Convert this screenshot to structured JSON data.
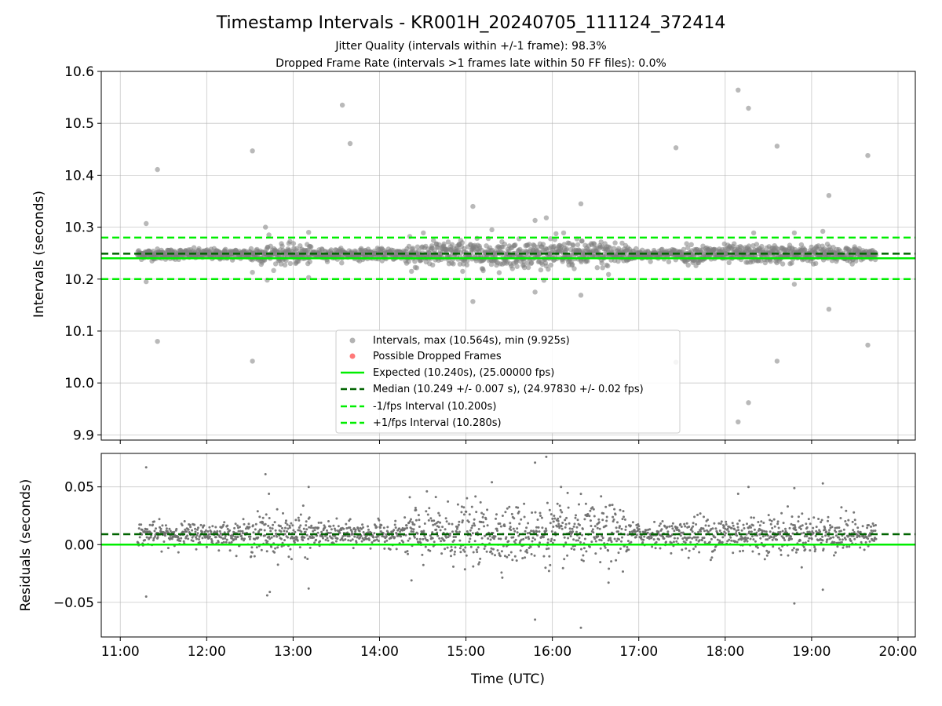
{
  "chart_data": [
    {
      "type": "scatter",
      "title": "Timestamp Intervals - KR001H_20240705_111124_372414",
      "subtitle_lines": [
        "Jitter Quality (intervals within +/-1 frame): 98.3%",
        "Dropped Frame Rate (intervals >1 frames late within 50 FF files): 0.0%"
      ],
      "xlabel": "",
      "ylabel": "Intervals (seconds)",
      "ylim": [
        9.89,
        10.6
      ],
      "y_ticks": [
        9.9,
        10.0,
        10.1,
        10.2,
        10.3,
        10.4,
        10.5,
        10.6
      ],
      "x_ticks_hours": [
        11,
        12,
        13,
        14,
        15,
        16,
        17,
        18,
        19,
        20
      ],
      "xlim_hours": [
        10.78,
        20.2
      ],
      "grid": true,
      "legend_position": "lower-center",
      "series": [
        {
          "name": "Intervals, max (10.564s), min (9.925s)",
          "color": "#808080",
          "marker": "circle",
          "band": {
            "t_start": 11.2,
            "t_end": 19.75,
            "center": 10.248
          },
          "outliers": [
            {
              "t": 11.3,
              "y": 10.307
            },
            {
              "t": 11.3,
              "y": 10.195
            },
            {
              "t": 11.43,
              "y": 10.411
            },
            {
              "t": 11.43,
              "y": 10.08
            },
            {
              "t": 12.53,
              "y": 10.447
            },
            {
              "t": 12.53,
              "y": 10.042
            },
            {
              "t": 12.53,
              "y": 10.213
            },
            {
              "t": 12.68,
              "y": 10.3
            },
            {
              "t": 12.7,
              "y": 10.198
            },
            {
              "t": 12.72,
              "y": 10.285
            },
            {
              "t": 13.03,
              "y": 10.23
            },
            {
              "t": 13.18,
              "y": 10.29
            },
            {
              "t": 13.18,
              "y": 10.203
            },
            {
              "t": 13.57,
              "y": 10.535
            },
            {
              "t": 13.66,
              "y": 10.461
            },
            {
              "t": 14.35,
              "y": 10.282
            },
            {
              "t": 14.37,
              "y": 10.215
            },
            {
              "t": 15.08,
              "y": 10.34
            },
            {
              "t": 15.08,
              "y": 10.157
            },
            {
              "t": 15.3,
              "y": 10.295
            },
            {
              "t": 15.8,
              "y": 10.313
            },
            {
              "t": 15.8,
              "y": 10.175
            },
            {
              "t": 15.93,
              "y": 10.318
            },
            {
              "t": 16.13,
              "y": 10.289
            },
            {
              "t": 16.33,
              "y": 10.345
            },
            {
              "t": 16.33,
              "y": 10.169
            },
            {
              "t": 16.65,
              "y": 10.209
            },
            {
              "t": 17.43,
              "y": 10.453
            },
            {
              "t": 17.43,
              "y": 10.04
            },
            {
              "t": 18.15,
              "y": 10.564
            },
            {
              "t": 18.15,
              "y": 9.925
            },
            {
              "t": 18.27,
              "y": 10.529
            },
            {
              "t": 18.27,
              "y": 9.962
            },
            {
              "t": 18.33,
              "y": 10.289
            },
            {
              "t": 18.6,
              "y": 10.456
            },
            {
              "t": 18.6,
              "y": 10.042
            },
            {
              "t": 18.8,
              "y": 10.289
            },
            {
              "t": 18.8,
              "y": 10.19
            },
            {
              "t": 19.13,
              "y": 10.292
            },
            {
              "t": 19.2,
              "y": 10.361
            },
            {
              "t": 19.2,
              "y": 10.142
            },
            {
              "t": 19.65,
              "y": 10.438
            },
            {
              "t": 19.65,
              "y": 10.073
            }
          ]
        },
        {
          "name": "Possible Dropped Frames",
          "color": "#ff4040",
          "marker": "circle",
          "points": []
        },
        {
          "name": "Expected (10.240s), (25.00000 fps)",
          "color": "#00ee00",
          "style": "solid",
          "y": 10.24
        },
        {
          "name": "Median (10.249 +/- 0.007 s), (24.97830 +/- 0.02 fps)",
          "color": "#006400",
          "style": "dashed",
          "y": 10.249
        },
        {
          "name": "-1/fps Interval (10.200s)",
          "color": "#00ee00",
          "style": "dashed",
          "y": 10.2
        },
        {
          "name": "+1/fps Interval (10.280s)",
          "color": "#00ee00",
          "style": "dashed",
          "y": 10.28
        }
      ]
    },
    {
      "type": "scatter",
      "xlabel": "Time (UTC)",
      "ylabel": "Residuals (seconds)",
      "ylim": [
        -0.08,
        0.079
      ],
      "y_ticks": [
        0.05,
        0.0,
        -0.05
      ],
      "y_tick_labels": [
        "0.05",
        "0.00",
        "−0.05"
      ],
      "x_tick_labels": [
        "11:00",
        "12:00",
        "13:00",
        "14:00",
        "15:00",
        "16:00",
        "17:00",
        "18:00",
        "19:00",
        "20:00"
      ],
      "grid": true,
      "series": [
        {
          "name": "",
          "color": "#707070",
          "band": {
            "t_start": 11.2,
            "t_end": 19.75,
            "center": 0.009
          },
          "outliers": [
            {
              "t": 11.3,
              "y": 0.067
            },
            {
              "t": 11.3,
              "y": -0.045
            },
            {
              "t": 12.68,
              "y": 0.061
            },
            {
              "t": 12.7,
              "y": -0.044
            },
            {
              "t": 12.73,
              "y": -0.041
            },
            {
              "t": 12.72,
              "y": 0.044
            },
            {
              "t": 13.18,
              "y": 0.05
            },
            {
              "t": 13.18,
              "y": -0.038
            },
            {
              "t": 14.35,
              "y": 0.041
            },
            {
              "t": 14.37,
              "y": -0.031
            },
            {
              "t": 15.3,
              "y": 0.054
            },
            {
              "t": 15.8,
              "y": 0.071
            },
            {
              "t": 15.8,
              "y": -0.065
            },
            {
              "t": 15.93,
              "y": 0.076
            },
            {
              "t": 16.1,
              "y": 0.05
            },
            {
              "t": 16.33,
              "y": -0.072
            },
            {
              "t": 16.65,
              "y": -0.033
            },
            {
              "t": 18.15,
              "y": 0.044
            },
            {
              "t": 18.27,
              "y": 0.05
            },
            {
              "t": 18.8,
              "y": -0.051
            },
            {
              "t": 18.8,
              "y": 0.049
            },
            {
              "t": 19.13,
              "y": 0.053
            },
            {
              "t": 19.13,
              "y": -0.039
            }
          ]
        },
        {
          "name": "",
          "color": "#006400",
          "style": "dashed",
          "y": 0.009
        },
        {
          "name": "",
          "color": "#00ee00",
          "style": "solid",
          "y": 0.0
        }
      ]
    }
  ]
}
